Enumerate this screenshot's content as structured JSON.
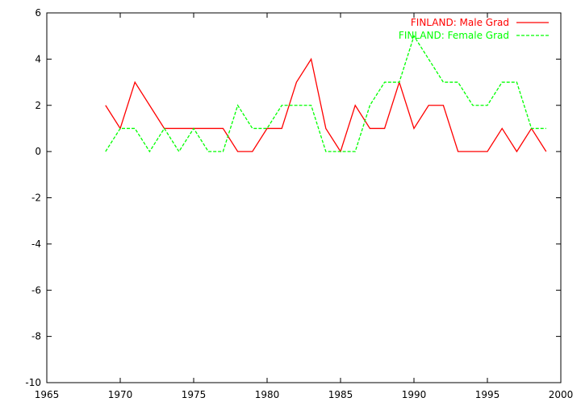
{
  "chart_data": {
    "type": "line",
    "title": "",
    "xlabel": "",
    "ylabel": "",
    "xlim": [
      1965,
      2000
    ],
    "ylim": [
      -10,
      6
    ],
    "xticks": [
      1965,
      1970,
      1975,
      1980,
      1985,
      1990,
      1995,
      2000
    ],
    "yticks": [
      -10,
      -8,
      -6,
      -4,
      -2,
      0,
      2,
      4,
      6
    ],
    "grid": false,
    "legend_position": "top-right",
    "x": [
      1969,
      1970,
      1971,
      1972,
      1973,
      1974,
      1975,
      1976,
      1977,
      1978,
      1979,
      1980,
      1981,
      1982,
      1983,
      1984,
      1985,
      1986,
      1987,
      1988,
      1989,
      1990,
      1991,
      1992,
      1993,
      1994,
      1995,
      1996,
      1997,
      1998,
      1999
    ],
    "series": [
      {
        "name": "FINLAND: Male Grad",
        "color": "#ff0000",
        "dash": "solid",
        "values": [
          2,
          1,
          3,
          2,
          1,
          1,
          1,
          1,
          1,
          0,
          0,
          1,
          1,
          3,
          4,
          1,
          0,
          2,
          1,
          1,
          3,
          1,
          2,
          2,
          0,
          0,
          0,
          1,
          0,
          1,
          0
        ]
      },
      {
        "name": "FINLAND: Female Grad",
        "color": "#00ff00",
        "dash": "dashed",
        "values": [
          0,
          1,
          1,
          0,
          1,
          0,
          1,
          0,
          0,
          2,
          1,
          1,
          2,
          2,
          2,
          0,
          0,
          0,
          2,
          3,
          3,
          5,
          4,
          3,
          3,
          2,
          2,
          3,
          3,
          1,
          1
        ]
      }
    ]
  }
}
